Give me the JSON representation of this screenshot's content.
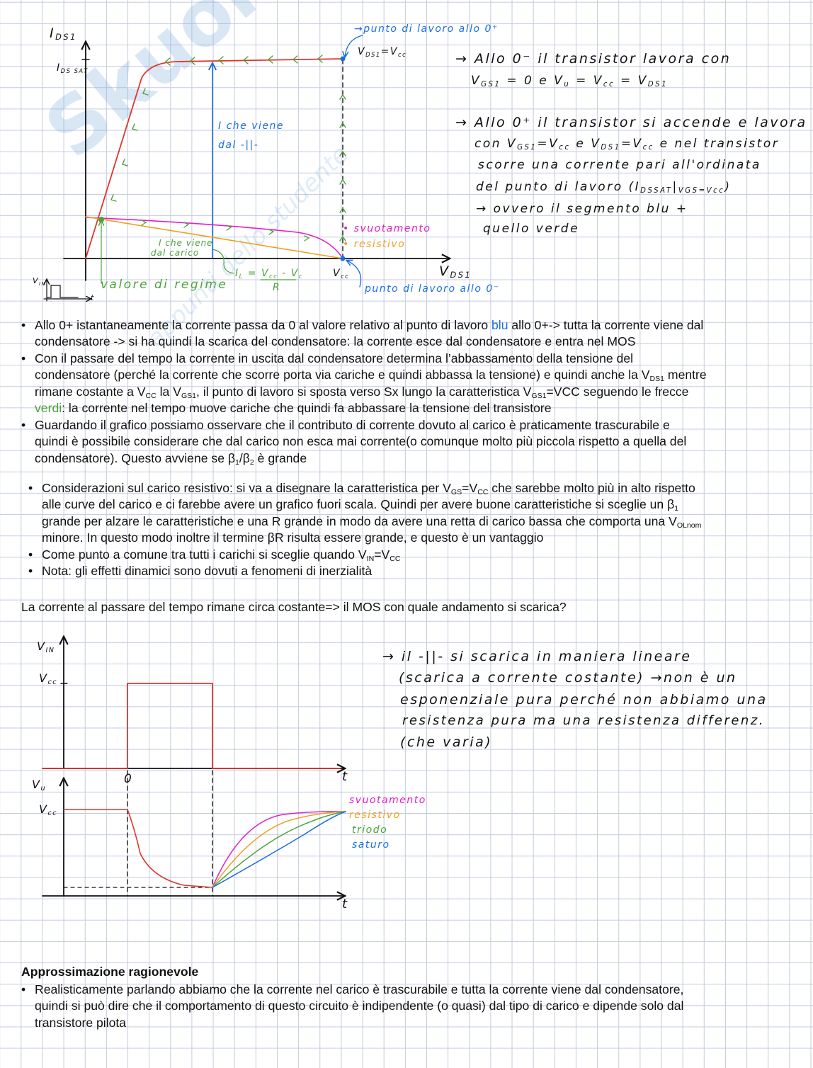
{
  "colors": {
    "blue": "#1a6fe0",
    "green": "#4aa33a",
    "red": "#e0352b",
    "magenta": "#e21fc8",
    "orange": "#f0a020",
    "ink": "#111111"
  },
  "watermark": {
    "logo": "Skuola.net",
    "tagline": "appunti dello studente"
  },
  "graph1": {
    "y_label": [
      "I",
      {
        "t": "DS1",
        "sub": true
      }
    ],
    "y_tick": [
      "I",
      {
        "t": "DS SAT",
        "sub": true
      }
    ],
    "x_label": [
      "V",
      {
        "t": "DS1",
        "sub": true
      }
    ],
    "x_tick": [
      "V",
      {
        "t": "cc",
        "sub": true
      }
    ],
    "work_point_plus": [
      "→punto di lavoro allo 0⁺"
    ],
    "work_point_plus_cond": [
      "V",
      {
        "t": "DS1",
        "sub": true
      },
      "=V",
      {
        "t": "cc",
        "sub": true
      }
    ],
    "work_point_minus": [
      "punto di lavoro allo 0⁻"
    ],
    "cap_current_1": [
      "I che viene"
    ],
    "cap_current_2": [
      "dal -||-"
    ],
    "load_current_1": [
      "I che viene"
    ],
    "load_current_2": [
      "dal carico"
    ],
    "il_formula_1": [
      "I",
      {
        "t": "L",
        "sub": true
      },
      " = V",
      {
        "t": "cc",
        "sub": true
      },
      " - V",
      {
        "t": "c",
        "sub": true
      }
    ],
    "il_formula_2": [
      "R"
    ],
    "steady": [
      "valore di regime"
    ],
    "vin_label": [
      "V",
      {
        "t": "IN",
        "sub": true
      }
    ],
    "t_label": [
      "t"
    ],
    "legend_svuotamento": [
      "• svuotamento"
    ],
    "legend_resistivo": [
      "• resistivo"
    ]
  },
  "notes_top": [
    [
      "→ Allo 0⁻  il transistor  lavora  con"
    ],
    [
      "V",
      {
        "t": "GS1",
        "sub": true
      },
      " = 0  e  V",
      {
        "t": "u",
        "sub": true
      },
      " = V",
      {
        "t": "cc",
        "sub": true
      },
      " = V",
      {
        "t": "DS1",
        "sub": true
      }
    ],
    [
      "→ Allo 0⁺ il transistor si accende e lavora"
    ],
    [
      "con V",
      {
        "t": "GS1",
        "sub": true
      },
      "=V",
      {
        "t": "cc",
        "sub": true
      },
      " e  V",
      {
        "t": "DS1",
        "sub": true
      },
      "=V",
      {
        "t": "cc",
        "sub": true
      },
      " e nel transistor"
    ],
    [
      "scorre  una  corrente pari  all'ordinata"
    ],
    [
      "del punto  di  lavoro (I",
      {
        "t": "DSSAT",
        "sub": true
      },
      "|",
      {
        "t": "VGS=Vcc",
        "sub": true
      },
      ")"
    ],
    [
      "→ ovvero il segmento blu +"
    ],
    [
      "quello   verde"
    ]
  ],
  "section1": [
    {
      "bullet": "•",
      "segs": [
        "Allo 0+ istantaneamente la corrente passa da 0 al valore relativo al punto di lavoro ",
        {
          "t": "blu",
          "color": "blue"
        },
        " allo 0+-> tutta la corrente viene dal"
      ]
    },
    {
      "segs": [
        "condensatore -> si ha quindi la scarica del condensatore: la corrente esce dal condensatore e entra nel MOS"
      ]
    },
    {
      "bullet": "•",
      "segs": [
        "Con il passare del tempo la corrente in uscita dal condensatore determina l’abbassamento della tensione del"
      ]
    },
    {
      "segs": [
        "condensatore (perché la corrente che scorre porta via cariche e quindi abbassa la tensione) e quindi anche la V",
        {
          "t": "DS1",
          "sub": true
        },
        " mentre"
      ]
    },
    {
      "segs": [
        "rimane costante a V",
        {
          "t": "CC",
          "sub": true
        },
        " la V",
        {
          "t": "GS1",
          "sub": true
        },
        ", il punto di lavoro si sposta verso Sx lungo la caratteristica V",
        {
          "t": "GS1",
          "sub": true
        },
        "=VCC seguendo le frecce"
      ]
    },
    {
      "segs": [
        {
          "t": "verdi",
          "color": "green"
        },
        ": la corrente nel tempo muove cariche che quindi fa abbassare la tensione del transistore"
      ]
    },
    {
      "bullet": "•",
      "segs": [
        "Guardando il grafico possiamo osservare che il contributo di corrente dovuto al carico è praticamente trascurabile e"
      ]
    },
    {
      "segs": [
        "quindi è possibile considerare che dal carico non esca mai corrente(o comunque molto più piccola rispetto a quella del"
      ]
    },
    {
      "segs": [
        "condensatore). Questo avviene se β",
        {
          "t": "1",
          "sub": true
        },
        "/β",
        {
          "t": "2",
          "sub": true
        },
        " è grande"
      ]
    }
  ],
  "section2": [
    {
      "bullet": "•",
      "segs": [
        "Considerazioni sul carico resistivo: si va a disegnare la caratteristica per V",
        {
          "t": "GS",
          "sub": true
        },
        "=V",
        {
          "t": "CC",
          "sub": true
        },
        " che sarebbe molto più in alto rispetto"
      ]
    },
    {
      "segs": [
        "alle curve del carico e ci farebbe avere un grafico fuori scala. Quindi per avere buone caratteristiche si sceglie un β",
        {
          "t": "1",
          "sub": true
        }
      ]
    },
    {
      "segs": [
        "grande per alzare le caratteristiche e una R grande in modo da avere una retta di carico bassa che comporta una V",
        {
          "t": "OLnom",
          "sub": true
        }
      ]
    },
    {
      "segs": [
        "minore. In questo modo inoltre il termine βR risulta essere grande, e questo è un vantaggio"
      ]
    },
    {
      "bullet": "•",
      "segs": [
        "Come punto a comune tra tutti i carichi si sceglie quando V",
        {
          "t": "IN",
          "sub": true
        },
        "=V",
        {
          "t": "CC",
          "sub": true
        }
      ]
    },
    {
      "bullet": "•",
      "segs": [
        "Nota: gli effetti dinamici sono dovuti a fenomeni di inerzialità"
      ]
    }
  ],
  "question": [
    "La corrente al passare del tempo rimane circa costante=> il MOS con quale andamento si scarica?"
  ],
  "graph2": {
    "vin_label": [
      "V",
      {
        "t": "IN",
        "sub": true
      }
    ],
    "vcc_label": [
      "V",
      {
        "t": "cc",
        "sub": true
      }
    ],
    "t_label": [
      "t"
    ],
    "vu_label": [
      "V",
      {
        "t": "u",
        "sub": true
      }
    ],
    "vcc_label2": [
      "V",
      {
        "t": "cc",
        "sub": true
      }
    ],
    "zero_label": [
      "0"
    ],
    "t_label2": [
      "t"
    ],
    "legend": [
      [
        "svuotamento"
      ],
      [
        "resistivo"
      ],
      [
        "triodo"
      ],
      [
        "saturo"
      ]
    ]
  },
  "notes_bottom": [
    [
      "→ il -||-  si  scarica  in  maniera  lineare"
    ],
    [
      "(scarica  a  corrente  costante) →non è un"
    ],
    [
      "esponenziale pura perché  non  abbiamo una"
    ],
    [
      "resistenza  pura   ma una resistenza differenz."
    ],
    [
      "(che  varia)"
    ]
  ],
  "section3": {
    "heading": [
      "Approssimazione ragionevole"
    ],
    "lines": [
      {
        "bullet": "•",
        "segs": [
          "Realisticamente parlando abbiamo che la corrente nel carico è trascurabile e tutta la corrente viene dal condensatore,"
        ]
      },
      {
        "segs": [
          "quindi si può dire che il comportamento di questo circuito è indipendente (o quasi) dal tipo di carico e dipende solo dal"
        ]
      },
      {
        "segs": [
          "transistore pilota"
        ]
      }
    ]
  }
}
